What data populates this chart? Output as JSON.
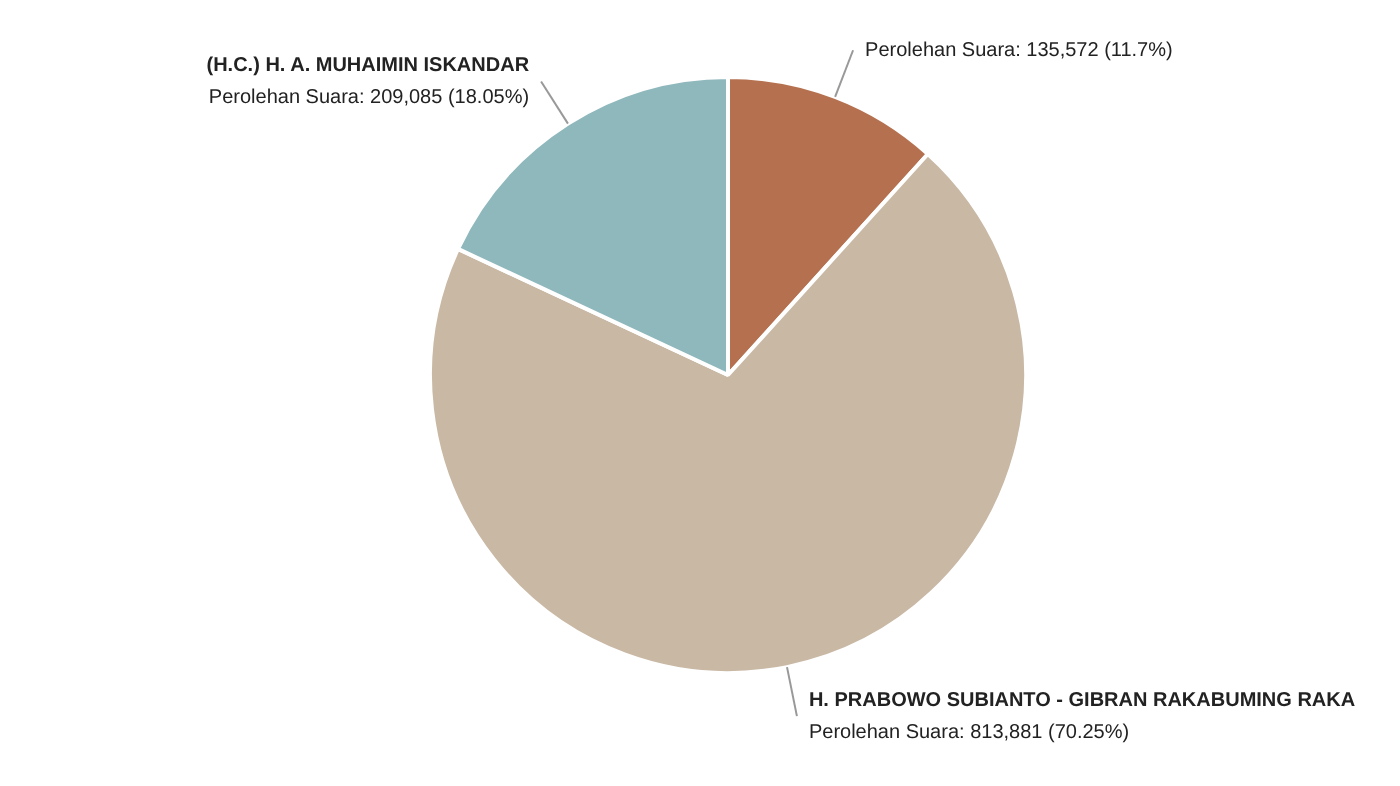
{
  "chart_data": {
    "type": "pie",
    "categories": [
      null,
      "H. PRABOWO SUBIANTO - GIBRAN RAKABUMING RAKA",
      "(H.C.) H. A. MUHAIMIN ISKANDAR"
    ],
    "values": [
      135572,
      813881,
      209085
    ],
    "value_labels": [
      "Perolehan Suara: 135,572 (11.7%)",
      "Perolehan Suara: 813,881 (70.25%)",
      "Perolehan Suara: 209,085 (18.05%)"
    ],
    "colors": [
      "#b5714f",
      "#c8b8a4",
      "#8fb8bc"
    ],
    "legend": false
  }
}
